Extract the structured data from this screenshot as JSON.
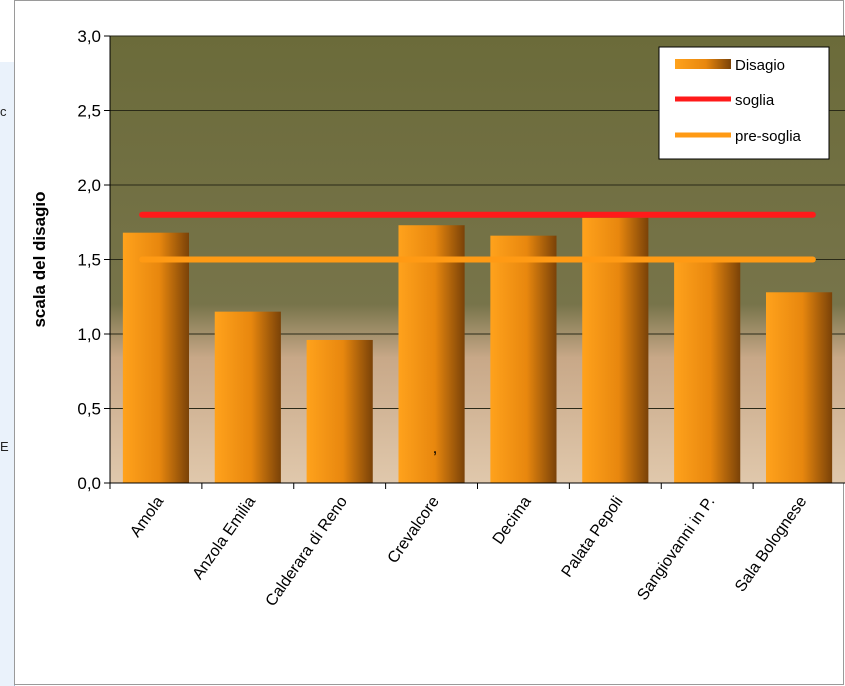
{
  "chart_data": {
    "type": "bar",
    "title": "",
    "xlabel": "",
    "ylabel": "scala del disagio",
    "ylim": [
      0,
      3
    ],
    "yticks": [
      "0,0",
      "0,5",
      "1,0",
      "1,5",
      "2,0",
      "2,5",
      "3,0"
    ],
    "categories": [
      "Amola",
      "Anzola Emilia",
      "Calderara di Reno",
      "Crevalcore",
      "Decima",
      "Palata Pepoli",
      "Sangiovanni in P.",
      "Sala Bolognese"
    ],
    "series": [
      {
        "name": "Disagio",
        "values": [
          1.68,
          1.15,
          0.96,
          1.73,
          1.66,
          1.78,
          1.48,
          1.28
        ]
      }
    ],
    "lines": [
      {
        "name": "soglia",
        "value": 1.8,
        "color": "#ff1a1a"
      },
      {
        "name": "pre-soglia",
        "value": 1.5,
        "color": "#ff9a14"
      }
    ],
    "grid": true,
    "legend": "top-right",
    "annotation": ",",
    "colors": {
      "bar": "#f29a14",
      "bar_dark": "#8a4a08",
      "plot_bg": "#6e6e3c"
    }
  }
}
